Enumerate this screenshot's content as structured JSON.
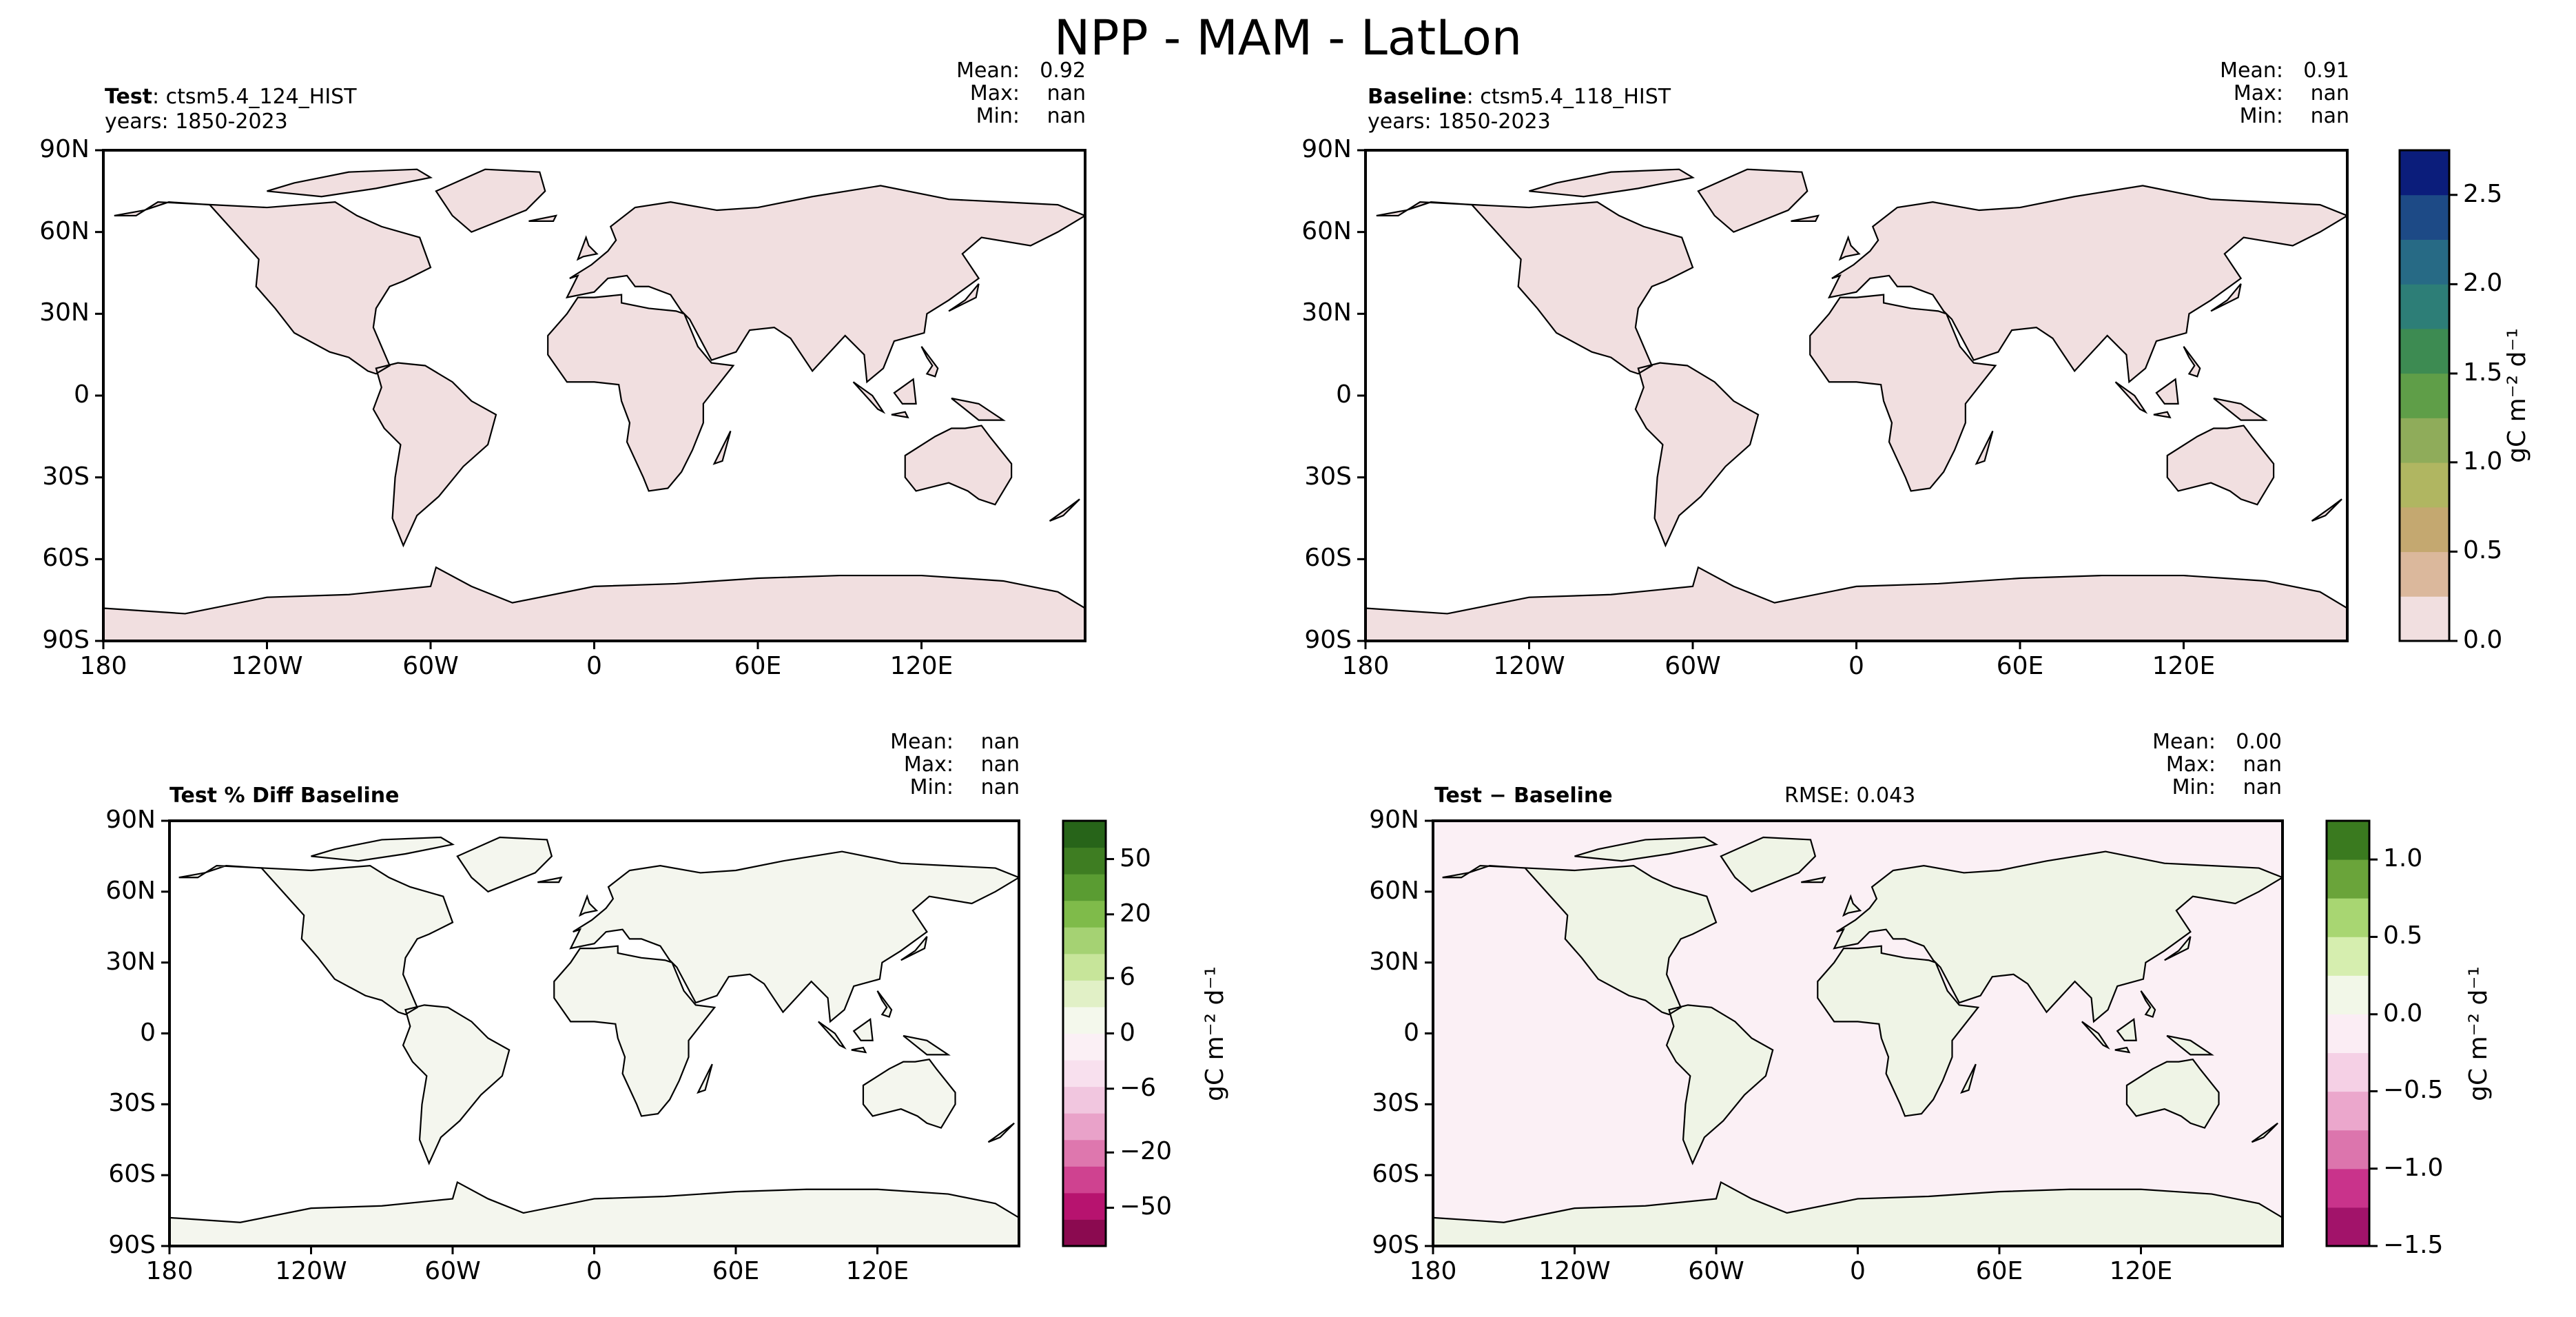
{
  "title": "NPP - MAM - LatLon",
  "colors": {
    "seq": [
      "#f1dfe0",
      "#dbb89c",
      "#c4a870",
      "#b0b661",
      "#8fac5a",
      "#5f9e48",
      "#3d8b52",
      "#2d7e77",
      "#276a85",
      "#1d4a86",
      "#0b1d7b"
    ],
    "diff_pct": [
      "#8b0a50",
      "#b7136f",
      "#cf4290",
      "#de77ae",
      "#e9a2c9",
      "#f1c6df",
      "#f8e0ee",
      "#fbf0f5",
      "#f4f8ec",
      "#e1f0c6",
      "#c7e59a",
      "#a5d273",
      "#7fbb4a",
      "#5a9c32",
      "#3e7d22",
      "#276419"
    ],
    "diff_abs": [
      "#a2136a",
      "#c9338b",
      "#dc75ad",
      "#eba7cc",
      "#f5d0e5",
      "#fbedf4",
      "#f2f7e8",
      "#d6eeaf",
      "#a8d672",
      "#6aa43a",
      "#3a7a1f"
    ],
    "land_test": "#f1dfe0",
    "land_pct": "#f4f6ee",
    "land_abs": "#eff4e6",
    "ocean_abs": "#fbf0f5"
  },
  "panels": {
    "test": {
      "title_bold": "Test",
      "title_rest": ": ctsm5.4_124_HIST",
      "years": "years: 1850-2023",
      "stats": [
        {
          "label": "Mean:",
          "value": "0.92"
        },
        {
          "label": "Max:",
          "value": "nan"
        },
        {
          "label": "Min:",
          "value": "nan"
        }
      ]
    },
    "baseline": {
      "title_bold": "Baseline",
      "title_rest": ": ctsm5.4_118_HIST",
      "years": "years: 1850-2023",
      "stats": [
        {
          "label": "Mean:",
          "value": "0.91"
        },
        {
          "label": "Max:",
          "value": "nan"
        },
        {
          "label": "Min:",
          "value": "nan"
        }
      ]
    },
    "pct": {
      "title_bold": "Test % Diff Baseline",
      "stats": [
        {
          "label": "Mean:",
          "value": "nan"
        },
        {
          "label": "Max:",
          "value": "nan"
        },
        {
          "label": "Min:",
          "value": "nan"
        }
      ]
    },
    "diff": {
      "title_bold": "Test − Baseline",
      "rmse": "RMSE: 0.043",
      "stats": [
        {
          "label": "Mean:",
          "value": "0.00"
        },
        {
          "label": "Max:",
          "value": "nan"
        },
        {
          "label": "Min:",
          "value": "nan"
        }
      ]
    }
  },
  "axes": {
    "lat_ticks": [
      "90N",
      "60N",
      "30N",
      "0",
      "30S",
      "60S",
      "90S"
    ],
    "lon_ticks": [
      "180",
      "120W",
      "60W",
      "0",
      "60E",
      "120E"
    ]
  },
  "colorbars": {
    "seq": {
      "ticks": [
        "2.5",
        "2.0",
        "1.5",
        "1.0",
        "0.5",
        "0.0"
      ],
      "label": "gC m⁻² d⁻¹"
    },
    "pct": {
      "ticks": [
        "50",
        "20",
        "6",
        "0",
        "−6",
        "−20",
        "−50"
      ],
      "label": "gC m⁻² d⁻¹"
    },
    "abs": {
      "ticks": [
        "1.0",
        "0.5",
        "0.0",
        "−0.5",
        "−1.0",
        "−1.5"
      ],
      "label": "gC m⁻² d⁻¹"
    }
  },
  "chart_data": [
    {
      "type": "heatmap",
      "title": "Test: ctsm5.4_124_HIST",
      "subtitle": "years: 1850-2023",
      "variable": "NPP",
      "season": "MAM",
      "units": "gC m-2 d-1",
      "xlim": [
        -180,
        180
      ],
      "ylim": [
        -90,
        90
      ],
      "colorbar_range": [
        0.0,
        2.75
      ],
      "colorbar_ticks": [
        0.0,
        0.5,
        1.0,
        1.5,
        2.0,
        2.5
      ],
      "mean": 0.92,
      "max": "nan",
      "min": "nan"
    },
    {
      "type": "heatmap",
      "title": "Baseline: ctsm5.4_118_HIST",
      "subtitle": "years: 1850-2023",
      "variable": "NPP",
      "season": "MAM",
      "units": "gC m-2 d-1",
      "xlim": [
        -180,
        180
      ],
      "ylim": [
        -90,
        90
      ],
      "colorbar_range": [
        0.0,
        2.75
      ],
      "colorbar_ticks": [
        0.0,
        0.5,
        1.0,
        1.5,
        2.0,
        2.5
      ],
      "mean": 0.91,
      "max": "nan",
      "min": "nan"
    },
    {
      "type": "heatmap",
      "title": "Test % Diff Baseline",
      "units": "gC m-2 d-1",
      "xlim": [
        -180,
        180
      ],
      "ylim": [
        -90,
        90
      ],
      "colorbar_ticks": [
        -50,
        -20,
        -6,
        0,
        6,
        20,
        50
      ],
      "mean": "nan",
      "max": "nan",
      "min": "nan"
    },
    {
      "type": "heatmap",
      "title": "Test - Baseline",
      "units": "gC m-2 d-1",
      "xlim": [
        -180,
        180
      ],
      "ylim": [
        -90,
        90
      ],
      "colorbar_range": [
        -1.5,
        1.25
      ],
      "colorbar_ticks": [
        -1.5,
        -1.0,
        -0.5,
        0.0,
        0.5,
        1.0
      ],
      "rmse": 0.043,
      "mean": 0.0,
      "max": "nan",
      "min": "nan"
    }
  ]
}
